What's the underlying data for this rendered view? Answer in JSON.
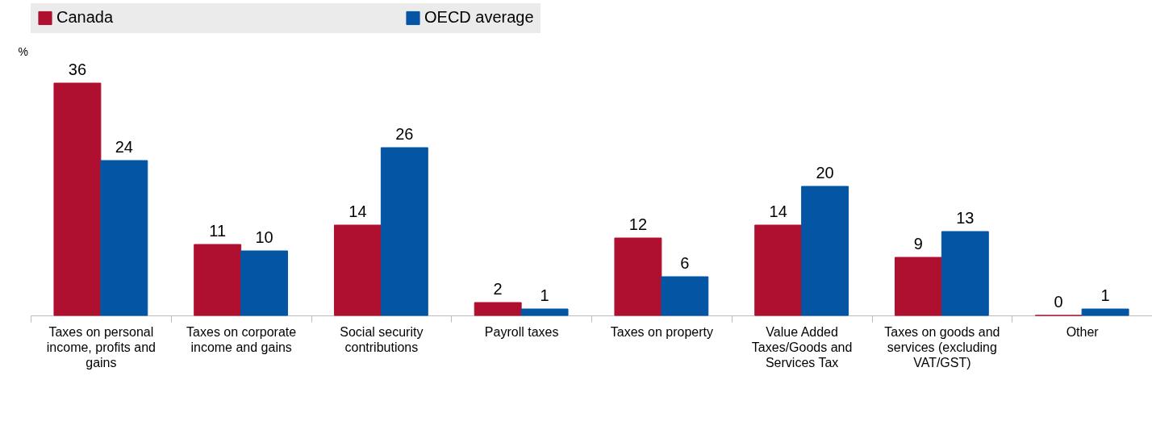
{
  "chart_data": {
    "type": "bar",
    "ylabel": "%",
    "categories": [
      "Taxes on personal income, profits and gains",
      "Taxes on corporate income and gains",
      "Social security contributions",
      "Payroll taxes",
      "Taxes on property",
      "Value Added Taxes/Goods and Services Tax",
      "Taxes on goods and services (excluding VAT/GST)",
      "Other"
    ],
    "series": [
      {
        "name": "Canada",
        "color": "#b0102f",
        "values": [
          36,
          11,
          14,
          2,
          12,
          14,
          9,
          0
        ]
      },
      {
        "name": "OECD average",
        "color": "#0555a5",
        "values": [
          24,
          10,
          26,
          1,
          6,
          20,
          13,
          1
        ]
      }
    ],
    "data_labels": true,
    "legend": "top",
    "grid": false
  }
}
